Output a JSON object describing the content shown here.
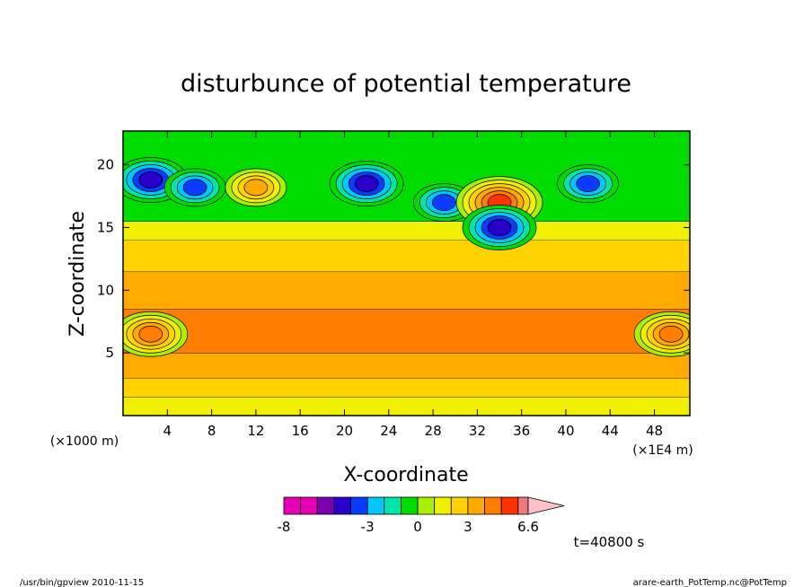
{
  "chart_data": {
    "type": "heatmap",
    "title": "disturbunce of potential temperature",
    "xlabel": "X-coordinate",
    "ylabel": "Z-coordinate",
    "x_unit_left": "(×1000 m)",
    "x_unit_right": "(×1E4 m)",
    "x_ticks": [
      4,
      8,
      12,
      16,
      20,
      24,
      28,
      32,
      36,
      40,
      44,
      48
    ],
    "x_tick_labels": [
      "4",
      "8",
      "12",
      "16",
      "20",
      "24",
      "28",
      "32",
      "36",
      "40",
      "44",
      "48"
    ],
    "y_ticks": [
      5,
      10,
      15,
      20
    ],
    "y_tick_labels": [
      "5",
      "10",
      "15",
      "20"
    ],
    "xlim": [
      0,
      51.2
    ],
    "ylim": [
      0,
      22.7
    ],
    "colorbar": {
      "levels": [
        -8,
        -7,
        -6,
        -5,
        -4,
        -3,
        -2,
        -1,
        0,
        1,
        2,
        3,
        4,
        5,
        6,
        6.6
      ],
      "colors": [
        "#e600b4",
        "#e600b4",
        "#7a00b0",
        "#2800c8",
        "#0a3cff",
        "#00c8ff",
        "#00e6aa",
        "#00dc00",
        "#aaf000",
        "#f0f000",
        "#ffd200",
        "#ffaa00",
        "#ff7d00",
        "#ff3200",
        "#f07878"
      ],
      "extend_color": "#ffc0c8",
      "tick_labels": [
        "-8",
        "-3",
        "0",
        "3",
        "6.6"
      ],
      "tick_values": [
        -8,
        -3,
        0,
        3,
        6.6
      ]
    },
    "time_label": "t=40800 s",
    "horizontal_bands": [
      {
        "z_range": [
          0,
          1.5
        ],
        "value": 1.5
      },
      {
        "z_range": [
          1.5,
          3
        ],
        "value": 2.5
      },
      {
        "z_range": [
          3,
          5
        ],
        "value": 3.5
      },
      {
        "z_range": [
          5,
          8.5
        ],
        "value": 4.5
      },
      {
        "z_range": [
          8.5,
          11.5
        ],
        "value": 3.5
      },
      {
        "z_range": [
          11.5,
          14
        ],
        "value": 2.5
      },
      {
        "z_range": [
          14,
          15.5
        ],
        "value": 1.5
      },
      {
        "z_range": [
          15.5,
          22.7
        ],
        "value": -0.5
      }
    ],
    "features": [
      {
        "x": 2.5,
        "z": 18.8,
        "value": -5,
        "note": "minimum"
      },
      {
        "x": 6.5,
        "z": 18.2,
        "value": -4,
        "note": "minimum"
      },
      {
        "x": 12,
        "z": 18.2,
        "value": 4,
        "note": "maximum"
      },
      {
        "x": 22,
        "z": 18.5,
        "value": -5,
        "note": "minimum"
      },
      {
        "x": 29,
        "z": 17,
        "value": -4,
        "note": "minimum"
      },
      {
        "x": 34,
        "z": 17,
        "value": 6,
        "note": "maximum"
      },
      {
        "x": 34,
        "z": 15,
        "value": -5,
        "note": "minimum"
      },
      {
        "x": 42,
        "z": 18.5,
        "value": -4,
        "note": "minimum"
      },
      {
        "x": 2.5,
        "z": 6.5,
        "value": 5,
        "note": "maximum"
      },
      {
        "x": 49.5,
        "z": 6.5,
        "value": 5,
        "note": "maximum"
      }
    ]
  },
  "footer": {
    "left": "/usr/bin/gpview   2010-11-15",
    "right": "arare-earth_PotTemp.nc@PotTemp"
  }
}
